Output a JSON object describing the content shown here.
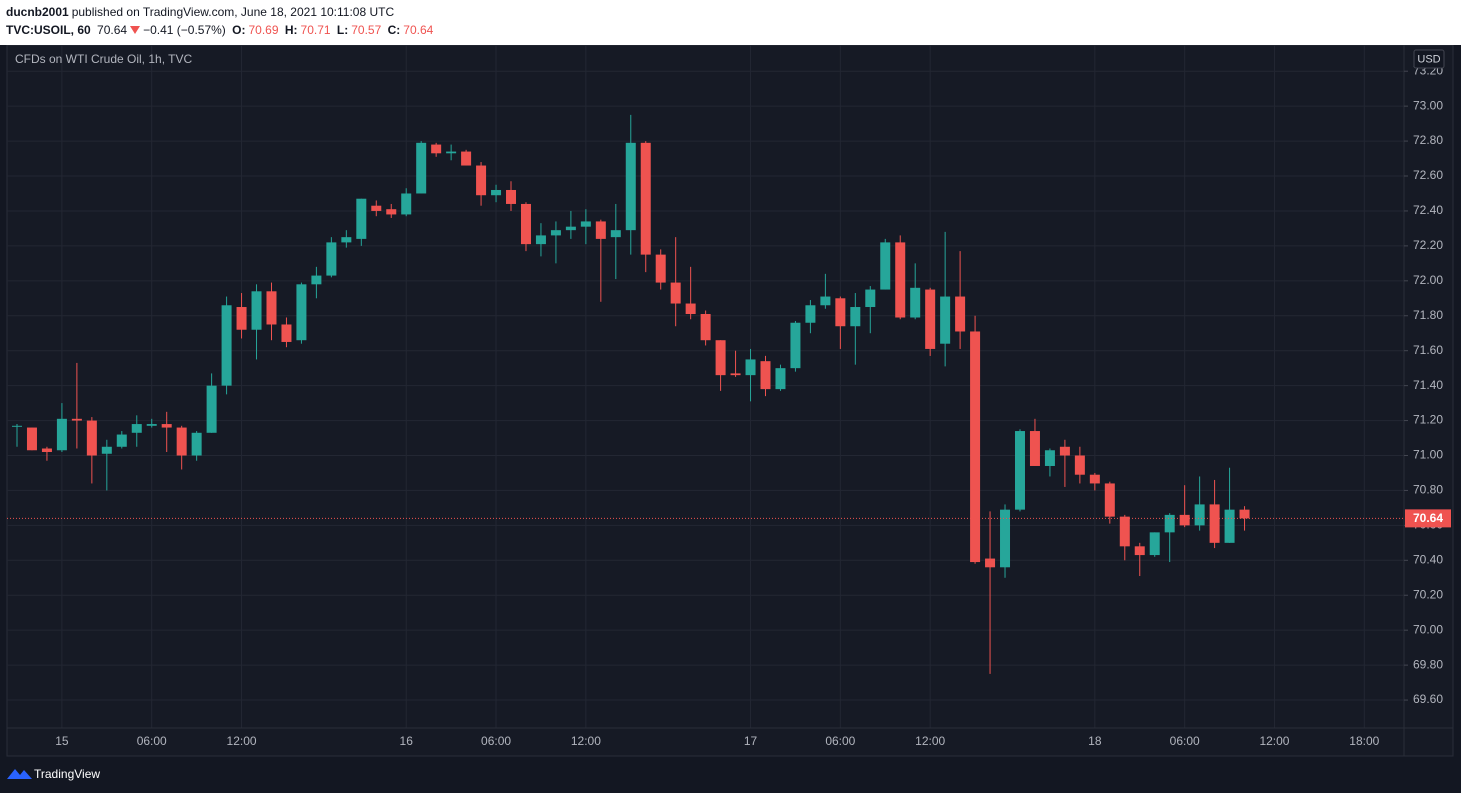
{
  "header": {
    "author": "ducnb2001",
    "published": "published on TradingView.com, June 18, 2021 10:11:08 UTC",
    "symbol": "TVC:USOIL, 60",
    "change": "−0.41 (−0.57%)",
    "ohlc_labels": [
      "O:",
      "H:",
      "L:",
      "C:"
    ]
  },
  "footer": {
    "brand": "TradingView"
  },
  "chart_data": {
    "type": "candlestick",
    "title": "CFDs on WTI Crude Oil, 1h, TVC",
    "currency": "USD",
    "up_color": "#26a69a",
    "down_color": "#ef5350",
    "grid": true,
    "categories": [
      null,
      null,
      null,
      "15",
      null,
      null,
      null,
      null,
      null,
      "06:00",
      null,
      null,
      null,
      null,
      null,
      "12:00",
      null,
      null,
      null,
      null,
      null,
      null,
      null,
      null,
      null,
      null,
      "16",
      null,
      null,
      null,
      null,
      null,
      "06:00",
      null,
      null,
      null,
      null,
      null,
      "12:00",
      null,
      null,
      null,
      null,
      null,
      null,
      null,
      null,
      null,
      null,
      "17",
      null,
      null,
      null,
      null,
      null,
      "06:00",
      null,
      null,
      null,
      null,
      null,
      "12:00",
      null,
      null,
      null,
      null,
      null,
      null,
      null,
      null,
      null,
      null,
      "18",
      null,
      null,
      null,
      null,
      null,
      "06:00",
      null,
      null,
      null,
      null,
      null,
      "12:00",
      null,
      null,
      null,
      null,
      null,
      "18:00",
      null,
      null
    ],
    "open": [
      71.17,
      71.16,
      71.04,
      71.03,
      71.21,
      71.2,
      71.01,
      71.05,
      71.13,
      71.17,
      71.18,
      71.16,
      71.0,
      71.13,
      71.4,
      71.85,
      71.72,
      71.94,
      71.75,
      71.66,
      71.98,
      72.03,
      72.22,
      72.24,
      72.43,
      72.41,
      72.38,
      72.5,
      72.78,
      72.73,
      72.74,
      72.66,
      72.49,
      72.52,
      72.44,
      72.21,
      72.26,
      72.29,
      72.31,
      72.34,
      72.25,
      72.29,
      72.79,
      72.15,
      71.99,
      71.87,
      71.81,
      71.66,
      71.47,
      71.46,
      71.54,
      71.38,
      71.5,
      71.76,
      71.86,
      71.9,
      71.74,
      71.85,
      71.95,
      72.22,
      71.79,
      71.95,
      71.64,
      71.91,
      71.71,
      70.41,
      70.36,
      70.69,
      71.14,
      70.94,
      71.05,
      71.0,
      70.89,
      70.84,
      70.65,
      70.48,
      70.43,
      70.56,
      70.66,
      70.6,
      70.72,
      70.5,
      70.69,
      null,
      null,
      null,
      null,
      null,
      null,
      null,
      null,
      null,
      null
    ],
    "high": [
      71.18,
      71.16,
      71.05,
      71.3,
      71.53,
      71.22,
      71.09,
      71.14,
      71.23,
      71.21,
      71.25,
      71.17,
      71.14,
      71.47,
      71.91,
      71.93,
      71.98,
      71.99,
      71.79,
      71.99,
      72.08,
      72.25,
      72.29,
      72.47,
      72.46,
      72.44,
      72.53,
      72.8,
      72.79,
      72.78,
      72.75,
      72.68,
      72.55,
      72.57,
      72.45,
      72.33,
      72.34,
      72.4,
      72.41,
      72.35,
      72.44,
      72.95,
      72.8,
      72.18,
      72.25,
      72.08,
      71.83,
      71.66,
      71.6,
      71.61,
      71.57,
      71.52,
      71.77,
      71.89,
      72.04,
      71.91,
      71.93,
      71.97,
      72.24,
      72.26,
      72.1,
      71.96,
      72.28,
      72.17,
      71.8,
      70.68,
      70.72,
      71.15,
      71.21,
      71.04,
      71.09,
      71.05,
      70.9,
      70.85,
      70.66,
      70.5,
      70.56,
      70.67,
      70.83,
      70.88,
      70.86,
      70.93,
      70.71,
      null,
      null,
      null,
      null,
      null,
      null,
      null,
      null,
      null,
      null
    ],
    "low": [
      71.05,
      71.03,
      70.97,
      71.02,
      71.04,
      70.84,
      70.8,
      71.04,
      71.05,
      71.16,
      71.02,
      70.92,
      70.97,
      71.13,
      71.35,
      71.67,
      71.55,
      71.66,
      71.62,
      71.64,
      71.9,
      72.02,
      72.19,
      72.2,
      72.37,
      72.36,
      72.37,
      72.5,
      72.71,
      72.69,
      72.66,
      72.43,
      72.45,
      72.4,
      72.17,
      72.14,
      72.1,
      72.24,
      72.21,
      71.88,
      72.01,
      72.15,
      72.05,
      71.95,
      71.74,
      71.78,
      71.63,
      71.37,
      71.45,
      71.31,
      71.34,
      71.37,
      71.48,
      71.7,
      71.84,
      71.61,
      71.52,
      71.7,
      71.95,
      71.78,
      71.78,
      71.57,
      71.51,
      71.61,
      70.38,
      69.75,
      70.3,
      70.68,
      70.94,
      70.88,
      70.82,
      70.84,
      70.8,
      70.61,
      70.4,
      70.31,
      70.42,
      70.39,
      70.59,
      70.57,
      70.47,
      70.5,
      70.57,
      null,
      null,
      null,
      null,
      null,
      null,
      null,
      null,
      null,
      null
    ],
    "close": [
      71.17,
      71.03,
      71.02,
      71.21,
      71.2,
      71.0,
      71.05,
      71.12,
      71.18,
      71.18,
      71.16,
      71.0,
      71.13,
      71.4,
      71.86,
      71.72,
      71.94,
      71.75,
      71.65,
      71.98,
      72.03,
      72.22,
      72.25,
      72.47,
      72.4,
      72.38,
      72.5,
      72.79,
      72.73,
      72.74,
      72.66,
      72.49,
      72.52,
      72.44,
      72.21,
      72.26,
      72.29,
      72.31,
      72.34,
      72.24,
      72.29,
      72.79,
      72.15,
      71.99,
      71.87,
      71.81,
      71.66,
      71.46,
      71.46,
      71.55,
      71.38,
      71.5,
      71.76,
      71.86,
      71.91,
      71.74,
      71.85,
      71.95,
      72.22,
      71.79,
      71.96,
      71.61,
      71.91,
      71.71,
      70.39,
      70.36,
      70.69,
      71.14,
      70.94,
      71.03,
      71.0,
      70.89,
      70.84,
      70.65,
      70.48,
      70.43,
      70.56,
      70.66,
      70.6,
      70.72,
      70.5,
      70.69,
      70.64,
      null,
      null,
      null,
      null,
      null,
      null,
      null,
      null,
      null,
      null
    ],
    "ylim": [
      69.44,
      73.35
    ],
    "yticks": [
      {
        "value": 69.6,
        "label": "69.60"
      },
      {
        "value": 69.8,
        "label": "69.80"
      },
      {
        "value": 70,
        "label": "70.00"
      },
      {
        "value": 70.2,
        "label": "70.20"
      },
      {
        "value": 70.4,
        "label": "70.40"
      },
      {
        "value": 70.6,
        "label": "70.60"
      },
      {
        "value": 70.8,
        "label": "70.80"
      },
      {
        "value": 71,
        "label": "71.00"
      },
      {
        "value": 71.2,
        "label": "71.20"
      },
      {
        "value": 71.4,
        "label": "71.40"
      },
      {
        "value": 71.6,
        "label": "71.60"
      },
      {
        "value": 71.8,
        "label": "71.80"
      },
      {
        "value": 72,
        "label": "72.00"
      },
      {
        "value": 72.2,
        "label": "72.20"
      },
      {
        "value": 72.4,
        "label": "72.40"
      },
      {
        "value": 72.6,
        "label": "72.60"
      },
      {
        "value": 72.8,
        "label": "72.80"
      },
      {
        "value": 73,
        "label": "73.00"
      },
      {
        "value": 73.2,
        "label": "73.20"
      }
    ]
  }
}
